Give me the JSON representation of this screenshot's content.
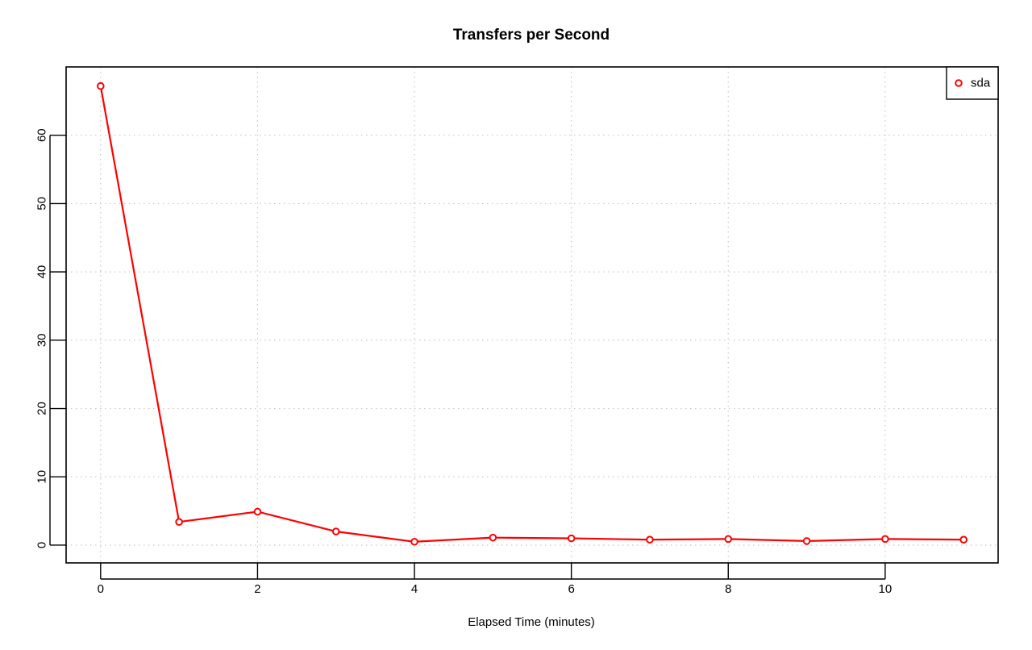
{
  "chart_data": {
    "type": "line",
    "title": "Transfers per Second",
    "xlabel": "Elapsed Time (minutes)",
    "ylabel": "",
    "xlim": [
      -0.44,
      11.44
    ],
    "ylim": [
      -2.6,
      70.0
    ],
    "xticks": [
      0,
      2,
      4,
      6,
      8,
      10
    ],
    "yticks": [
      0,
      10,
      20,
      30,
      40,
      50,
      60
    ],
    "grid": true,
    "legend_position": "top-right",
    "series": [
      {
        "name": "sda",
        "color": "#ff0000",
        "marker": "open-circle",
        "x": [
          0,
          1,
          2,
          3,
          4,
          5,
          6,
          7,
          8,
          9,
          10,
          11
        ],
        "y": [
          67.2,
          3.4,
          4.9,
          2.0,
          0.5,
          1.1,
          1.0,
          0.8,
          0.9,
          0.6,
          0.9,
          0.8
        ]
      }
    ]
  }
}
